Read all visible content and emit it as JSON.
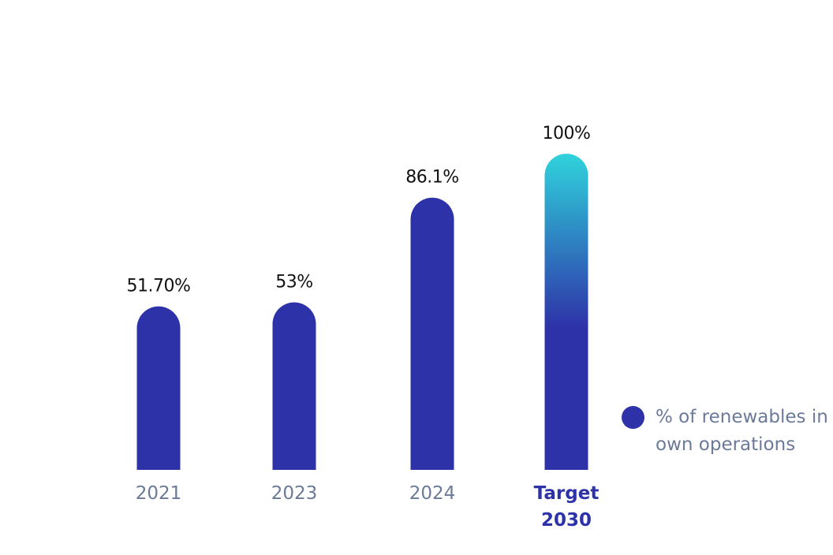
{
  "chart_data": {
    "type": "bar",
    "categories": [
      "2021",
      "2023",
      "2024",
      "Target 2030"
    ],
    "category_lines": [
      [
        "2021"
      ],
      [
        "2023"
      ],
      [
        "2024"
      ],
      [
        "Target",
        "2030"
      ]
    ],
    "values": [
      51.7,
      53,
      86.1,
      100
    ],
    "value_labels": [
      "51.70%",
      "53%",
      "86.1%",
      "100%"
    ],
    "ylim": [
      0,
      100
    ],
    "title": "",
    "xlabel": "",
    "ylabel": "",
    "grid": false,
    "legend": {
      "placement": "right",
      "entries": [
        "% of renewables in own operations"
      ]
    },
    "colors": {
      "bar": "#2e32a8",
      "target_gradient_top": "#2fd3dc",
      "target_gradient_bottom": "#2e32a8",
      "baseline_dark": "#1e1e5a",
      "baseline_accent": "#2fd3dc",
      "tick_label": "#6b7a99",
      "tick_label_highlight": "#2e32a8",
      "value_label": "#111111"
    }
  }
}
